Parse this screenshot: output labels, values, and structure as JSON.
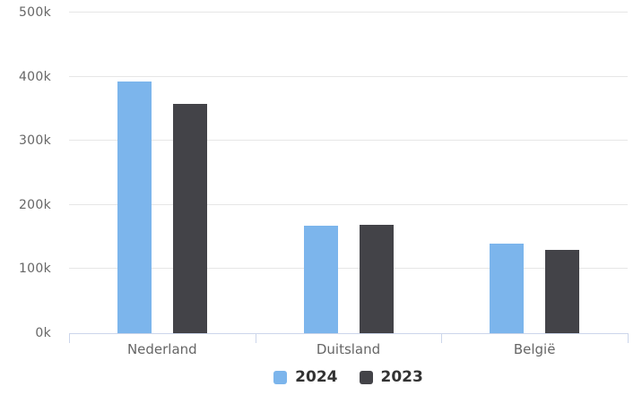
{
  "chart_data": {
    "type": "bar",
    "title": "",
    "xlabel": "",
    "ylabel": "",
    "categories": [
      "Nederland",
      "Duitsland",
      "België"
    ],
    "series": [
      {
        "name": "2024",
        "color": "#7cb5ec",
        "values": [
          393000,
          168000,
          140000
        ]
      },
      {
        "name": "2023",
        "color": "#434348",
        "values": [
          358000,
          169000,
          130000
        ]
      }
    ],
    "ylim": [
      0,
      500000
    ],
    "ytick_step": 100000,
    "ytick_labels": [
      "0k",
      "100k",
      "200k",
      "300k",
      "400k",
      "500k"
    ],
    "grid": true,
    "legend_position": "bottom-center"
  },
  "colors": {
    "background": "#ffffff",
    "grid": "#e6e6e6",
    "axis": "#ccd6eb",
    "y_tick_label": "#666666",
    "category_label": "#666666",
    "legend_text": "#333333"
  }
}
